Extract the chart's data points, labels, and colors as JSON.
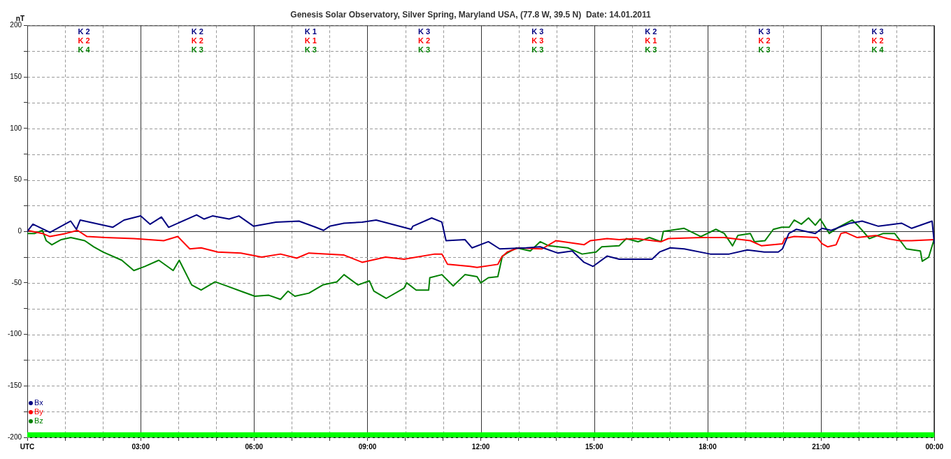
{
  "chart_data": {
    "type": "line",
    "title": "Genesis Solar Observatory, Silver Spring, Maryland USA, (77.8 W, 39.5 N)  Date: 14.01.2011",
    "ylabel": "nT",
    "xlim": [
      0,
      24
    ],
    "ylim": [
      -200,
      200
    ],
    "xticks": [
      {
        "value": 0,
        "label": "UTC"
      },
      {
        "value": 1,
        "label": null
      },
      {
        "value": 2,
        "label": null
      },
      {
        "value": 3,
        "label": "03:00"
      },
      {
        "value": 4,
        "label": null
      },
      {
        "value": 5,
        "label": null
      },
      {
        "value": 6,
        "label": "06:00"
      },
      {
        "value": 7,
        "label": null
      },
      {
        "value": 8,
        "label": null
      },
      {
        "value": 9,
        "label": "09:00"
      },
      {
        "value": 10,
        "label": null
      },
      {
        "value": 11,
        "label": null
      },
      {
        "value": 12,
        "label": "12:00"
      },
      {
        "value": 13,
        "label": null
      },
      {
        "value": 14,
        "label": null
      },
      {
        "value": 15,
        "label": "15:00"
      },
      {
        "value": 16,
        "label": null
      },
      {
        "value": 17,
        "label": null
      },
      {
        "value": 18,
        "label": "18:00"
      },
      {
        "value": 19,
        "label": null
      },
      {
        "value": 20,
        "label": null
      },
      {
        "value": 21,
        "label": "21:00"
      },
      {
        "value": 22,
        "label": null
      },
      {
        "value": 23,
        "label": null
      },
      {
        "value": 24,
        "label": "00:00"
      }
    ],
    "yticks": [
      -200,
      {
        "value": -175,
        "label": null
      },
      -150,
      {
        "value": -125,
        "label": null
      },
      -100,
      {
        "value": -75,
        "label": null
      },
      -50,
      {
        "value": -25,
        "label": null
      },
      0,
      {
        "value": 25,
        "label": null
      },
      50,
      {
        "value": 75,
        "label": null
      },
      100,
      {
        "value": 125,
        "label": null
      },
      150,
      {
        "value": 175,
        "label": null
      },
      200
    ],
    "grid": true,
    "legend": "bottom left",
    "marker": "none",
    "line_style": "solid",
    "bands": [
      {
        "axis": "y",
        "from": -200,
        "to": -195,
        "color": "#00ff00"
      }
    ],
    "annotations": [
      "K 2",
      "K 2",
      "K 4",
      "K 2",
      "K 2",
      "K 3",
      "K 1",
      "K 1",
      "K 3",
      "K 3",
      "K 2",
      "K 3",
      "K 3",
      "K 3",
      "K 3",
      "K 2",
      "K 1",
      "K 3",
      "K 3",
      "K 2",
      "K 3",
      "K 3",
      "K 2",
      "K 4"
    ],
    "series": [
      {
        "name": "Bx",
        "color": "#000080",
        "x": [
          0,
          0.15,
          0.6,
          1.15,
          1.3,
          1.4,
          2.26,
          2.56,
          3,
          3.25,
          3.55,
          3.74,
          4.48,
          4.68,
          4.9,
          5.34,
          5.6,
          5.99,
          6.58,
          7.19,
          7.63,
          7.84,
          8.0,
          8.38,
          8.86,
          9.23,
          10.16,
          10.2,
          10.7,
          10.97,
          11.08,
          11.58,
          11.77,
          12.2,
          12.5,
          13.2,
          13.57,
          14.03,
          14.42,
          14.73,
          14.97,
          15.34,
          15.66,
          16.53,
          16.73,
          17.01,
          17.38,
          18.07,
          18.57,
          19.05,
          19.5,
          19.87,
          19.98,
          20.15,
          20.35,
          20.85,
          21.03,
          21.27,
          21.77,
          22.09,
          22.52,
          23.13,
          23.4,
          23.94,
          24
        ],
        "values": [
          0,
          7,
          -1,
          10,
          2,
          11,
          4,
          11,
          15,
          7,
          14,
          4,
          16,
          12,
          15,
          12,
          15,
          5,
          9,
          10,
          4,
          1,
          5,
          8,
          9,
          11,
          2,
          5,
          13,
          9,
          -9,
          -8,
          -16,
          -10,
          -17,
          -16,
          -15,
          -21,
          -19,
          -30,
          -34,
          -24,
          -27,
          -27,
          -20,
          -16,
          -17,
          -22,
          -22,
          -18,
          -20,
          -20,
          -17,
          -2,
          2,
          -2,
          3,
          1,
          8,
          10,
          5,
          8,
          3,
          10,
          -12
        ]
      },
      {
        "name": "By",
        "color": "#ff0000",
        "x": [
          0,
          0.4,
          0.6,
          1.02,
          1.33,
          1.58,
          2.07,
          2.82,
          3.61,
          3.98,
          4.3,
          4.6,
          5.04,
          5.65,
          6.2,
          6.7,
          7.13,
          7.45,
          8.38,
          8.86,
          9.48,
          9.97,
          10.78,
          10.97,
          11.12,
          11.71,
          11.9,
          12.45,
          12.55,
          12.7,
          13.0,
          13.62,
          13.99,
          14.73,
          14.9,
          15.34,
          15.66,
          16.1,
          16.77,
          16.96,
          17.83,
          18.44,
          19.13,
          19.43,
          19.98,
          20.04,
          20.29,
          20.9,
          21.03,
          21.18,
          21.4,
          21.53,
          21.65,
          21.96,
          22.46,
          22.76,
          23.07,
          23.4,
          24
        ],
        "values": [
          1,
          -2,
          -5,
          -2,
          1,
          -5,
          -6,
          -7,
          -9,
          -5,
          -17,
          -16,
          -20,
          -21,
          -25,
          -22,
          -26,
          -21,
          -23,
          -30,
          -25,
          -27,
          -22,
          -22,
          -32,
          -34,
          -35,
          -32,
          -25,
          -20,
          -16,
          -17,
          -9,
          -13,
          -9,
          -7,
          -8,
          -7,
          -10,
          -7,
          -6,
          -6,
          -9,
          -14,
          -12,
          -7,
          -5,
          -6,
          -12,
          -15,
          -13,
          -2,
          -1,
          -6,
          -4,
          -7,
          -9,
          -9,
          -8
        ]
      },
      {
        "name": "Bz",
        "color": "#008000",
        "x": [
          0,
          0.2,
          0.4,
          0.5,
          0.65,
          0.9,
          1.15,
          1.52,
          1.76,
          2.0,
          2.5,
          2.82,
          3.11,
          3.48,
          3.86,
          4.02,
          4.35,
          4.6,
          4.97,
          5.28,
          5.65,
          6.02,
          6.39,
          6.7,
          6.9,
          7.08,
          7.45,
          7.82,
          8.19,
          8.38,
          8.75,
          9.05,
          9.17,
          9.5,
          9.97,
          10.04,
          10.29,
          10.62,
          10.65,
          10.97,
          11.27,
          11.58,
          11.9,
          12.0,
          12.2,
          12.45,
          12.57,
          12.7,
          12.94,
          13.31,
          13.57,
          13.8,
          14.3,
          14.68,
          15.05,
          15.2,
          15.66,
          15.85,
          16.16,
          16.46,
          16.77,
          16.83,
          17.38,
          17.82,
          18.22,
          18.44,
          18.66,
          18.8,
          19.13,
          19.24,
          19.52,
          19.74,
          19.96,
          20.16,
          20.29,
          20.48,
          20.67,
          20.85,
          20.98,
          21.22,
          21.46,
          21.83,
          22.02,
          22.28,
          22.65,
          22.95,
          23.26,
          23.63,
          23.68,
          23.85,
          24
        ],
        "values": [
          -2,
          -2,
          1,
          -9,
          -13,
          -8,
          -6,
          -9,
          -15,
          -20,
          -28,
          -38,
          -34,
          -28,
          -38,
          -28,
          -52,
          -57,
          -49,
          -53,
          -58,
          -63,
          -62,
          -66,
          -58,
          -63,
          -60,
          -52,
          -49,
          -42,
          -52,
          -48,
          -58,
          -65,
          -55,
          -50,
          -57,
          -57,
          -45,
          -42,
          -53,
          -42,
          -44,
          -50,
          -45,
          -44,
          -24,
          -21,
          -16,
          -19,
          -10,
          -14,
          -16,
          -22,
          -20,
          -15,
          -14,
          -7,
          -10,
          -6,
          -10,
          0,
          3,
          -5,
          2,
          -2,
          -14,
          -4,
          -2,
          -10,
          -9,
          2,
          4,
          4,
          11,
          7,
          13,
          6,
          12,
          -2,
          4,
          11,
          4,
          -7,
          -2,
          -2,
          -17,
          -19,
          -29,
          -25,
          -7
        ]
      }
    ]
  }
}
